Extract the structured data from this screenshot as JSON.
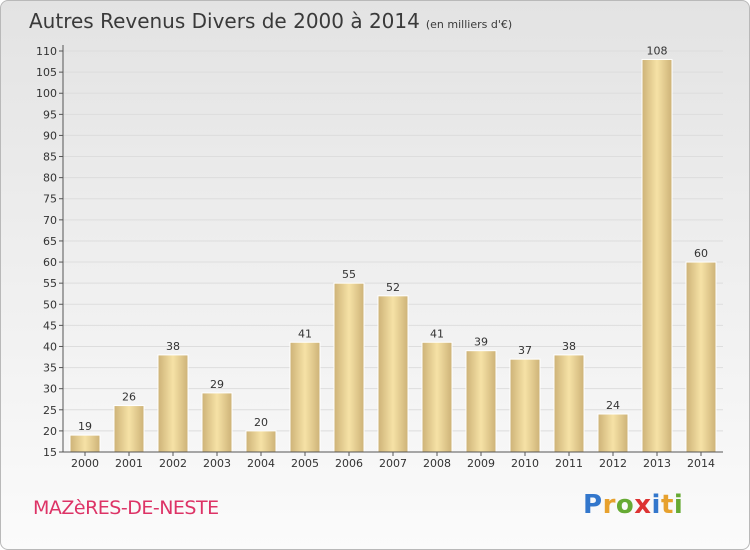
{
  "header": {
    "title": "Autres Revenus Divers de 2000 à 2014",
    "subtitle": "(en milliers d'€)"
  },
  "footer": {
    "commune": "MAZèRES-DE-NESTE",
    "logo": [
      "P",
      "r",
      "o",
      "x",
      "i",
      "t",
      "i"
    ],
    "logo_colors": [
      "#3377cc",
      "#e7a12e",
      "#66aa33",
      "#dd3333",
      "#3377cc",
      "#e7a12e",
      "#66aa33"
    ]
  },
  "colors": {
    "bar_light": "#f6e2a6",
    "bar_dark": "#cdb277",
    "axis": "#555555",
    "grid": "#dddddd"
  },
  "chart_data": {
    "type": "bar",
    "title": "Autres Revenus Divers de 2000 à 2014",
    "categories": [
      "2000",
      "2001",
      "2002",
      "2003",
      "2004",
      "2005",
      "2006",
      "2007",
      "2008",
      "2009",
      "2010",
      "2011",
      "2012",
      "2013",
      "2014"
    ],
    "values": [
      19,
      26,
      38,
      29,
      20,
      41,
      55,
      52,
      41,
      39,
      37,
      38,
      24,
      108,
      60
    ],
    "ylim": [
      15,
      110
    ],
    "yticks": [
      15,
      20,
      25,
      30,
      35,
      40,
      45,
      50,
      55,
      60,
      65,
      70,
      75,
      80,
      85,
      90,
      95,
      100,
      105,
      110
    ],
    "grid": true,
    "data_labels": true
  }
}
